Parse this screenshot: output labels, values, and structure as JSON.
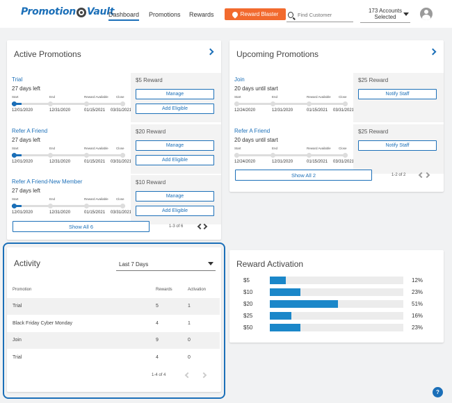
{
  "header": {
    "logo_left": "Promotion",
    "logo_right": "Vault",
    "nav": [
      "Dashboard",
      "Promotions",
      "Rewards"
    ],
    "blaster_label": "Reward Blaster",
    "search_placeholder": "Find Customer",
    "accounts_line1": "173 Accounts",
    "accounts_line2": "Selected"
  },
  "active": {
    "title": "Active Promotions",
    "timeline_labels": [
      "Start",
      "End",
      "Reward Available",
      "Close"
    ],
    "rows": [
      {
        "name": "Trial",
        "days": "27 days left",
        "dates": [
          "12/01/2020",
          "12/31/2020",
          "01/15/2021",
          "03/31/2021"
        ],
        "reward": "$5 Reward",
        "progress": 0.05
      },
      {
        "name": "Refer A Friend",
        "days": "27 days left",
        "dates": [
          "12/01/2020",
          "12/31/2020",
          "01/15/2021",
          "03/31/2021"
        ],
        "reward": "$20 Reward",
        "progress": 0.05
      },
      {
        "name": "Refer A Friend-New Member",
        "days": "27 days left",
        "dates": [
          "12/01/2020",
          "12/31/2020",
          "01/15/2021",
          "03/31/2021"
        ],
        "reward": "$10 Reward",
        "progress": 0.05
      }
    ],
    "manage_label": "Manage",
    "eligible_label": "Add Eligible",
    "show_all": "Show All 6",
    "pager": "1-3 of 6"
  },
  "upcoming": {
    "title": "Upcoming Promotions",
    "timeline_labels": [
      "Start",
      "End",
      "Reward Available",
      "Close"
    ],
    "rows": [
      {
        "name": "Join",
        "days": "20 days until start",
        "dates": [
          "12/24/2020",
          "12/31/2020",
          "01/15/2021",
          "03/31/2021"
        ],
        "reward": "$25 Reward"
      },
      {
        "name": "Refer A Friend",
        "days": "20 days until start",
        "dates": [
          "12/24/2020",
          "12/31/2020",
          "01/15/2021",
          "03/31/2021"
        ],
        "reward": "$25 Reward"
      }
    ],
    "notify_label": "Notify Staff",
    "show_all": "Show All 2",
    "pager": "1-2 of 2"
  },
  "activity": {
    "title": "Activity",
    "range": "Last 7 Days",
    "headers": [
      "Promotion",
      "Rewards",
      "Activation"
    ],
    "rows": [
      {
        "promotion": "Trial",
        "rewards": "5",
        "activation": "1"
      },
      {
        "promotion": "Black Friday Cyber Monday",
        "rewards": "4",
        "activation": "1"
      },
      {
        "promotion": "Join",
        "rewards": "9",
        "activation": "0"
      },
      {
        "promotion": "Trial",
        "rewards": "4",
        "activation": "0"
      }
    ],
    "pager": "1-4 of 4"
  },
  "activation": {
    "title": "Reward Activation",
    "bars": [
      {
        "label": "$5",
        "pct": "12%",
        "value": 12
      },
      {
        "label": "$10",
        "pct": "23%",
        "value": 23
      },
      {
        "label": "$20",
        "pct": "51%",
        "value": 51
      },
      {
        "label": "$25",
        "pct": "16%",
        "value": 16
      },
      {
        "label": "$50",
        "pct": "23%",
        "value": 23
      }
    ]
  },
  "help_label": "?",
  "colors": {
    "brand": "#1b6fb8",
    "blaster": "#f26a2e",
    "bar": "#1b87c9"
  }
}
